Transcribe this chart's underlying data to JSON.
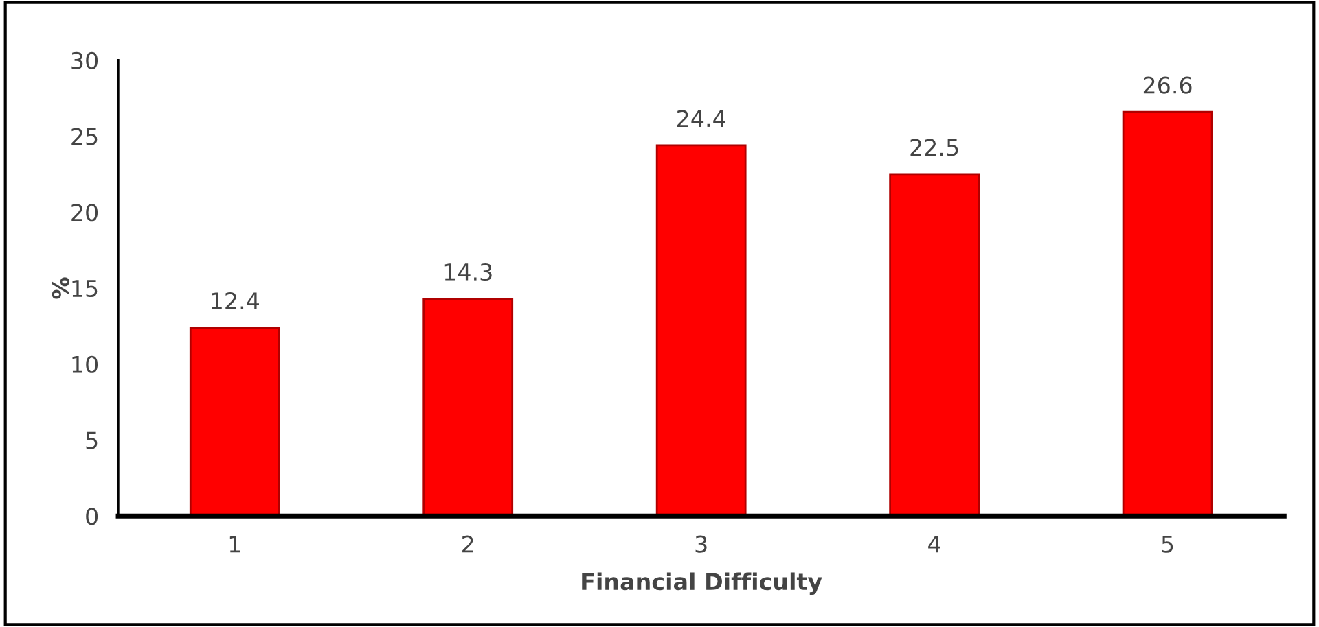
{
  "chart_data": {
    "type": "bar",
    "xlabel": "Financial Difficulty",
    "ylabel": "%",
    "categories": [
      "1",
      "2",
      "3",
      "4",
      "5"
    ],
    "values": [
      12.4,
      14.3,
      24.4,
      22.5,
      26.6
    ],
    "color": "#ff0000",
    "ylim": [
      0,
      30
    ],
    "yticks": [
      0,
      5,
      10,
      15,
      20,
      25,
      30
    ],
    "data_labels": true,
    "grid": false,
    "legend": false
  }
}
